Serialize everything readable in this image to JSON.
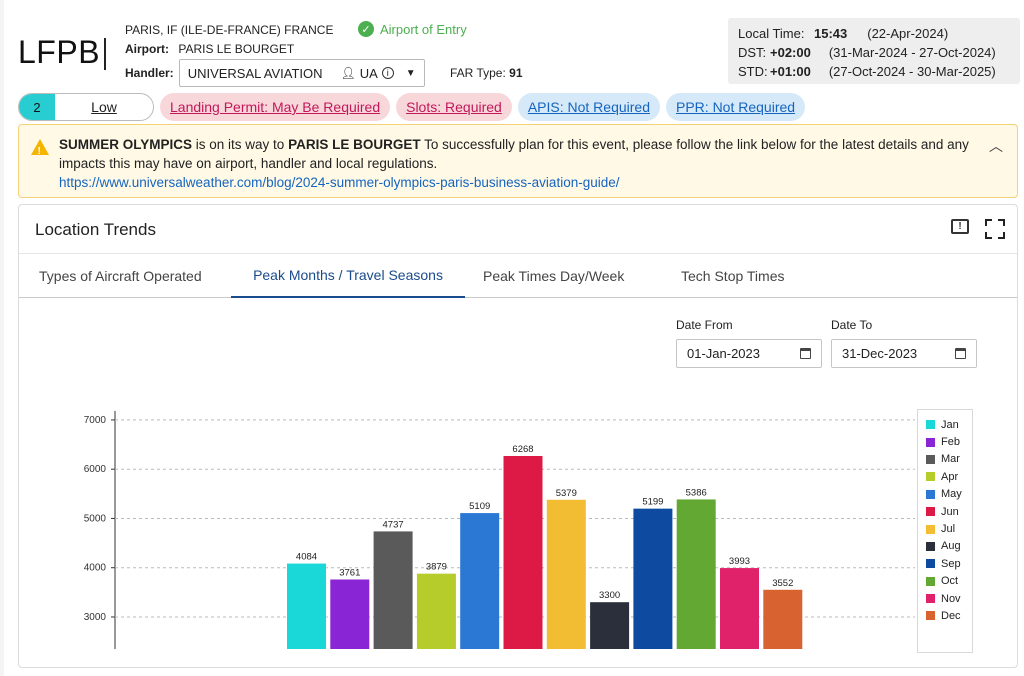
{
  "airport": {
    "code": "LFPB",
    "location": "PARIS, IF (ILE-DE-FRANCE) FRANCE",
    "entry_status": "Airport of Entry",
    "airport_label": "Airport:",
    "airport_name": "PARIS LE BOURGET",
    "handler_label": "Handler:",
    "handler_name": "UNIVERSAL AVIATION",
    "handler_abbrev": "UA",
    "far_type_label": "FAR Type:",
    "far_type_value": "91"
  },
  "time": {
    "local_label": "Local Time:",
    "local_value": "15:43",
    "local_date": "(22-Apr-2024)",
    "dst_label": "DST:",
    "dst_value": "+02:00",
    "dst_range": "(31-Mar-2024 - 27-Oct-2024)",
    "std_label": "STD:",
    "std_value": "+01:00",
    "std_range": "(27-Oct-2024 - 30-Mar-2025)"
  },
  "risk": {
    "number": "2",
    "level": "Low"
  },
  "pills": {
    "landing": "Landing Permit: May Be Required",
    "slots": "Slots: Required",
    "apis": "APIS: Not Required",
    "ppr": "PPR: Not Required"
  },
  "alert": {
    "event": "SUMMER OLYMPICS",
    "mid": " is on its way to ",
    "place": "PARIS LE BOURGET",
    "text": " To successfully plan for this event, please follow the link below for the latest details and any impacts this may have on airport, handler and local regulations.",
    "link": "https://www.universalweather.com/blog/2024-summer-olympics-paris-business-aviation-guide/"
  },
  "panel": {
    "title": "Location Trends",
    "tabs": [
      "Types of Aircraft Operated",
      "Peak Months / Travel Seasons",
      "Peak Times Day/Week",
      "Tech Stop Times"
    ],
    "date_from_label": "Date From",
    "date_from_value": "01-Jan-2023",
    "date_to_label": "Date To",
    "date_to_value": "31-Dec-2023"
  },
  "colors": {
    "accent": "#1a4b8c",
    "risk_low": "#27cdd1",
    "alert_bg": "#fff9e6"
  },
  "chart_data": {
    "type": "bar",
    "categories": [
      "Jan",
      "Feb",
      "Mar",
      "Apr",
      "May",
      "Jun",
      "Jul",
      "Aug",
      "Sep",
      "Oct",
      "Nov",
      "Dec"
    ],
    "values": [
      4084,
      3761,
      4737,
      3879,
      5109,
      6268,
      5379,
      3300,
      5199,
      5386,
      3993,
      3552
    ],
    "colors": [
      "#1ad8d8",
      "#8a25d6",
      "#5a5a5a",
      "#b5cc2a",
      "#2a78d4",
      "#dc1a45",
      "#f2bd33",
      "#2a2f3b",
      "#0e4aa0",
      "#62a833",
      "#e0226b",
      "#d86330"
    ],
    "yticks": [
      3000,
      4000,
      5000,
      6000,
      7000
    ],
    "ylim": [
      2350,
      7100
    ],
    "grid": true,
    "legend": "right"
  }
}
